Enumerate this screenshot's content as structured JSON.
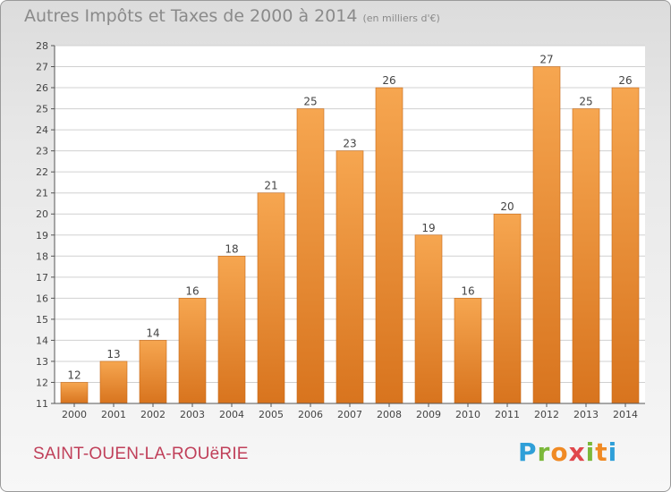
{
  "header": {
    "title": "Autres Impôts et Taxes de 2000 à 2014",
    "unit": "(en milliers d'€)"
  },
  "footer": {
    "commune": "SAINT-OUEN-LA-ROUëRIE",
    "logo": {
      "letters": [
        "P",
        "r",
        "o",
        "x",
        "i",
        "t",
        "i"
      ],
      "colors": [
        "#2f9fd8",
        "#7bb83a",
        "#f08a24",
        "#e0474c",
        "#7bb83a",
        "#f08a24",
        "#2f9fd8"
      ]
    }
  },
  "colors": {
    "bar_light": "#f6a650",
    "bar_dark": "#d8741e",
    "axis": "#555555",
    "grid": "#d0d0d0"
  },
  "chart_data": {
    "type": "bar",
    "categories": [
      "2000",
      "2001",
      "2002",
      "2003",
      "2004",
      "2005",
      "2006",
      "2007",
      "2008",
      "2009",
      "2010",
      "2011",
      "2012",
      "2013",
      "2014"
    ],
    "values": [
      12,
      13,
      14,
      16,
      18,
      21,
      25,
      23,
      26,
      19,
      16,
      20,
      27,
      25,
      26
    ],
    "ylim": [
      11,
      28
    ],
    "yticks": [
      11,
      12,
      13,
      14,
      15,
      16,
      17,
      18,
      19,
      20,
      21,
      22,
      23,
      24,
      25,
      26,
      27,
      28
    ],
    "grid": true,
    "data_labels": true
  }
}
